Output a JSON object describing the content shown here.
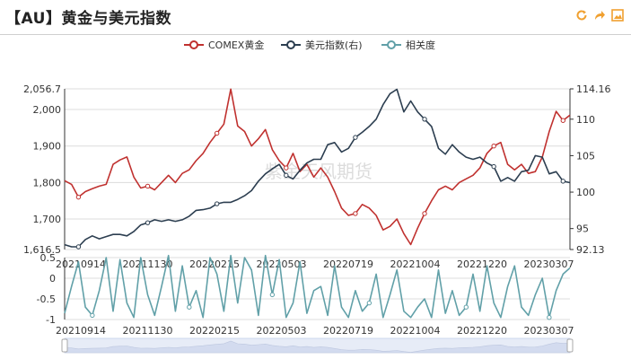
{
  "page": {
    "title": "【AU】黄金与美元指数"
  },
  "toolbar": {
    "icons": [
      "refresh-icon",
      "share-icon",
      "image-icon"
    ],
    "accent": "#f0a030"
  },
  "watermark": "紫金天风期货",
  "chart_data": {
    "type": "line",
    "legend": {
      "placement": "top-center",
      "items": [
        {
          "name": "COMEX黄金",
          "color": "#c0312f"
        },
        {
          "name": "美元指数(右)",
          "color": "#2c3e50"
        },
        {
          "name": "相关度",
          "color": "#61a0a8"
        }
      ]
    },
    "x_ticks": [
      "20210914",
      "20211130",
      "20220215",
      "20220503",
      "20220719",
      "20221004",
      "20221220",
      "20230307"
    ],
    "top_panel": {
      "y_left": {
        "min": 1616.5,
        "max": 2056.7,
        "ticks": [
          1616.5,
          1700,
          1800,
          1900,
          2000,
          2056.7
        ],
        "tick_labels": [
          "1,616.5",
          "1,700",
          "1,800",
          "1,900",
          "2,000",
          "2,056.7"
        ]
      },
      "y_right": {
        "min": 92.13,
        "max": 114.16,
        "ticks": [
          92.13,
          95,
          100,
          105,
          110,
          114.16
        ],
        "tick_labels": [
          "92.13",
          "95",
          "100",
          "105",
          "110",
          "114.16"
        ]
      },
      "series": [
        {
          "name": "COMEX黄金",
          "axis": "left",
          "color": "#c0312f",
          "values": [
            1805,
            1795,
            1760,
            1775,
            1783,
            1790,
            1795,
            1850,
            1862,
            1870,
            1815,
            1785,
            1790,
            1780,
            1800,
            1820,
            1800,
            1825,
            1835,
            1860,
            1880,
            1910,
            1935,
            1960,
            2056,
            1955,
            1940,
            1900,
            1920,
            1945,
            1890,
            1860,
            1840,
            1880,
            1830,
            1850,
            1815,
            1840,
            1815,
            1775,
            1730,
            1710,
            1715,
            1740,
            1730,
            1710,
            1670,
            1680,
            1700,
            1660,
            1630,
            1675,
            1715,
            1750,
            1780,
            1790,
            1780,
            1800,
            1810,
            1820,
            1840,
            1880,
            1900,
            1910,
            1850,
            1835,
            1850,
            1825,
            1830,
            1870,
            1940,
            1995,
            1970,
            1985
          ]
        },
        {
          "name": "美元指数(右)",
          "axis": "right",
          "color": "#2c3e50",
          "values": [
            92.8,
            92.5,
            92.5,
            93.5,
            94.0,
            93.6,
            93.9,
            94.2,
            94.2,
            94.0,
            94.6,
            95.5,
            95.8,
            96.2,
            96.0,
            96.2,
            96.0,
            96.2,
            96.7,
            97.5,
            97.6,
            97.8,
            98.4,
            98.6,
            98.6,
            99.0,
            99.5,
            100.2,
            101.5,
            102.5,
            103.2,
            103.8,
            102.3,
            101.8,
            103.0,
            104.0,
            104.5,
            104.5,
            106.5,
            106.8,
            105.5,
            106.0,
            107.5,
            108.2,
            109.0,
            110.0,
            112.0,
            113.5,
            114.1,
            111.0,
            112.5,
            111.0,
            110.0,
            109.0,
            106.0,
            105.2,
            106.5,
            105.5,
            104.8,
            104.5,
            104.8,
            104.0,
            103.5,
            101.5,
            102.0,
            101.5,
            102.8,
            103.0,
            105.0,
            104.8,
            102.5,
            102.8,
            101.5,
            101.3
          ]
        }
      ]
    },
    "bottom_panel": {
      "y": {
        "min": -1,
        "max": 0.5,
        "ticks": [
          -1,
          -0.5,
          0,
          0.5
        ],
        "tick_labels": [
          "-1",
          "-0.5",
          "0",
          "0.5"
        ]
      },
      "series": [
        {
          "name": "相关度",
          "color": "#61a0a8",
          "values": [
            -0.85,
            -0.2,
            0.4,
            -0.7,
            -0.9,
            -0.3,
            0.5,
            -0.8,
            0.45,
            -0.6,
            -0.95,
            0.5,
            -0.4,
            -0.9,
            -0.2,
            0.55,
            -0.8,
            0.3,
            -0.7,
            -0.3,
            -0.95,
            0.5,
            0.1,
            -0.8,
            0.55,
            -0.6,
            0.5,
            0.2,
            -0.9,
            0.55,
            -0.4,
            0.45,
            -0.95,
            -0.6,
            0.4,
            -0.85,
            -0.3,
            -0.2,
            -0.9,
            0.3,
            -0.7,
            -0.95,
            -0.3,
            -0.8,
            -0.6,
            0.1,
            -0.95,
            -0.4,
            0.2,
            -0.8,
            -0.95,
            -0.7,
            -0.5,
            -0.95,
            0.2,
            -0.85,
            -0.3,
            -0.9,
            -0.7,
            0.1,
            -0.8,
            0.3,
            -0.6,
            -0.95,
            -0.2,
            0.3,
            -0.7,
            -0.9,
            -0.4,
            0.0,
            -0.95,
            -0.3,
            0.1,
            0.25
          ]
        }
      ]
    },
    "data_zoom": {
      "start": 0.0,
      "end": 1.0
    }
  }
}
